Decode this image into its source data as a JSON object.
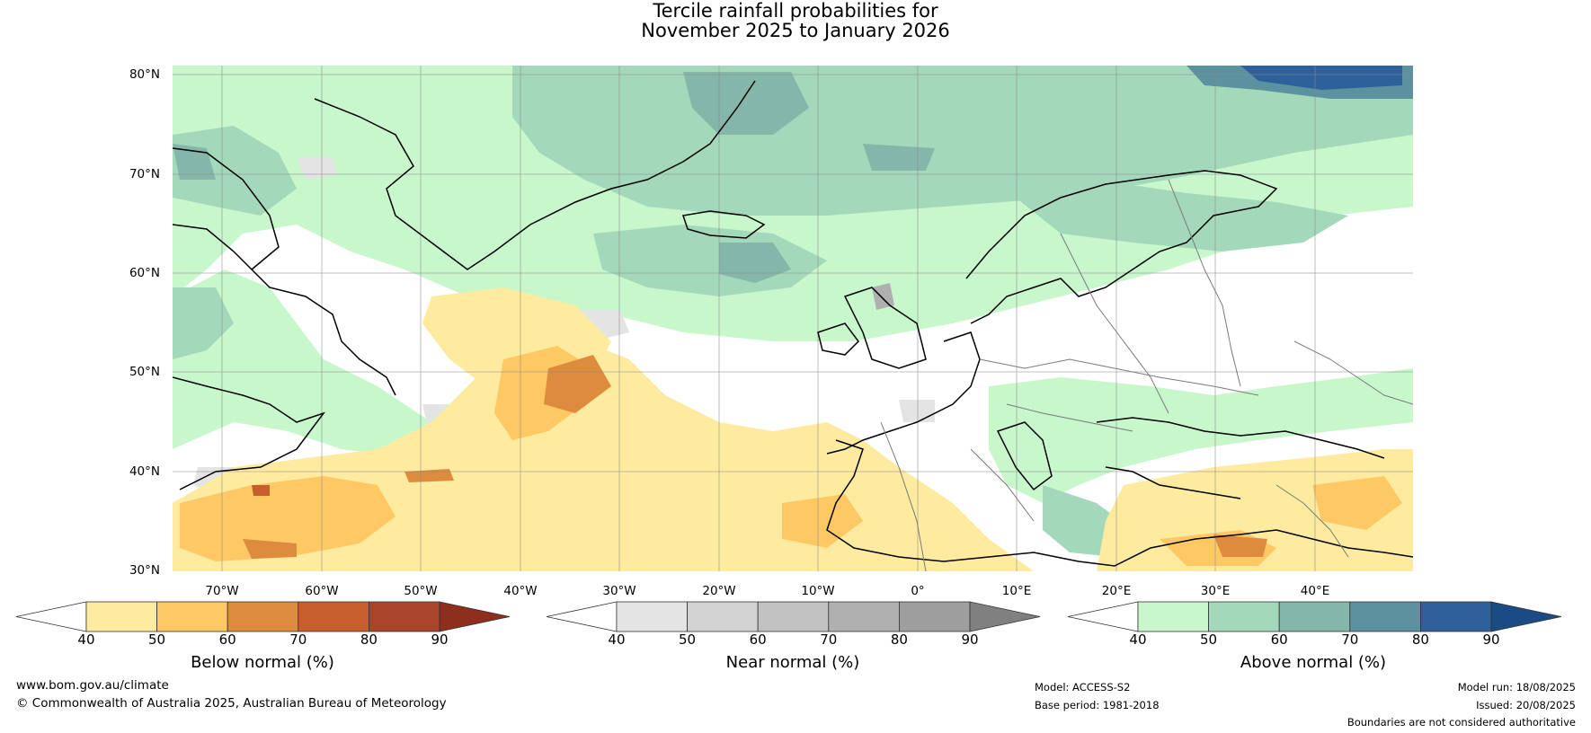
{
  "title": {
    "line1": "Tercile rainfall probabilities for",
    "line2": "November 2025 to January 2026"
  },
  "map": {
    "lat_labels": [
      "80°N",
      "70°N",
      "60°N",
      "50°N",
      "40°N",
      "30°N"
    ],
    "lon_labels": [
      "70°W",
      "60°W",
      "50°W",
      "40°W",
      "30°W",
      "20°W",
      "10°W",
      "0°",
      "10°E",
      "20°E",
      "30°E",
      "40°E"
    ],
    "region": "North Atlantic and Europe",
    "colors": {
      "ocean_bg": "#ffffff",
      "coastline": "#000000",
      "borders": "#7a7a7a",
      "grid": "#8a8a8a"
    }
  },
  "colorbars": [
    {
      "name": "below",
      "title": "Below normal (%)",
      "ticks": [
        "40",
        "50",
        "60",
        "70",
        "80",
        "90"
      ],
      "colors": [
        "#ffffff",
        "#ffeb9f",
        "#fec965",
        "#dd8b3c",
        "#c75f2c",
        "#a8452a",
        "#8e2e1c"
      ]
    },
    {
      "name": "near",
      "title": "Near normal (%)",
      "ticks": [
        "40",
        "50",
        "60",
        "70",
        "80",
        "90"
      ],
      "colors": [
        "#ffffff",
        "#e4e4e4",
        "#d2d2d2",
        "#c2c2c2",
        "#b0b0b0",
        "#9e9e9e",
        "#808080"
      ]
    },
    {
      "name": "above",
      "title": "Above normal (%)",
      "ticks": [
        "40",
        "50",
        "60",
        "70",
        "80",
        "90"
      ],
      "colors": [
        "#ffffff",
        "#c8f7cc",
        "#a4d8bb",
        "#84b6a9",
        "#5c919f",
        "#30609a",
        "#1a4b85"
      ]
    }
  ],
  "footer": {
    "website": "www.bom.gov.au/climate",
    "copyright": "© Commonwealth of Australia 2025, Australian Bureau of Meteorology",
    "model": "Model: ACCESS-S2",
    "base_period": "Base period: 1981-2018",
    "model_run": "Model run: 18/08/2025",
    "issued": "Issued: 20/08/2025",
    "disclaimer": "Boundaries are not considered authoritative"
  }
}
